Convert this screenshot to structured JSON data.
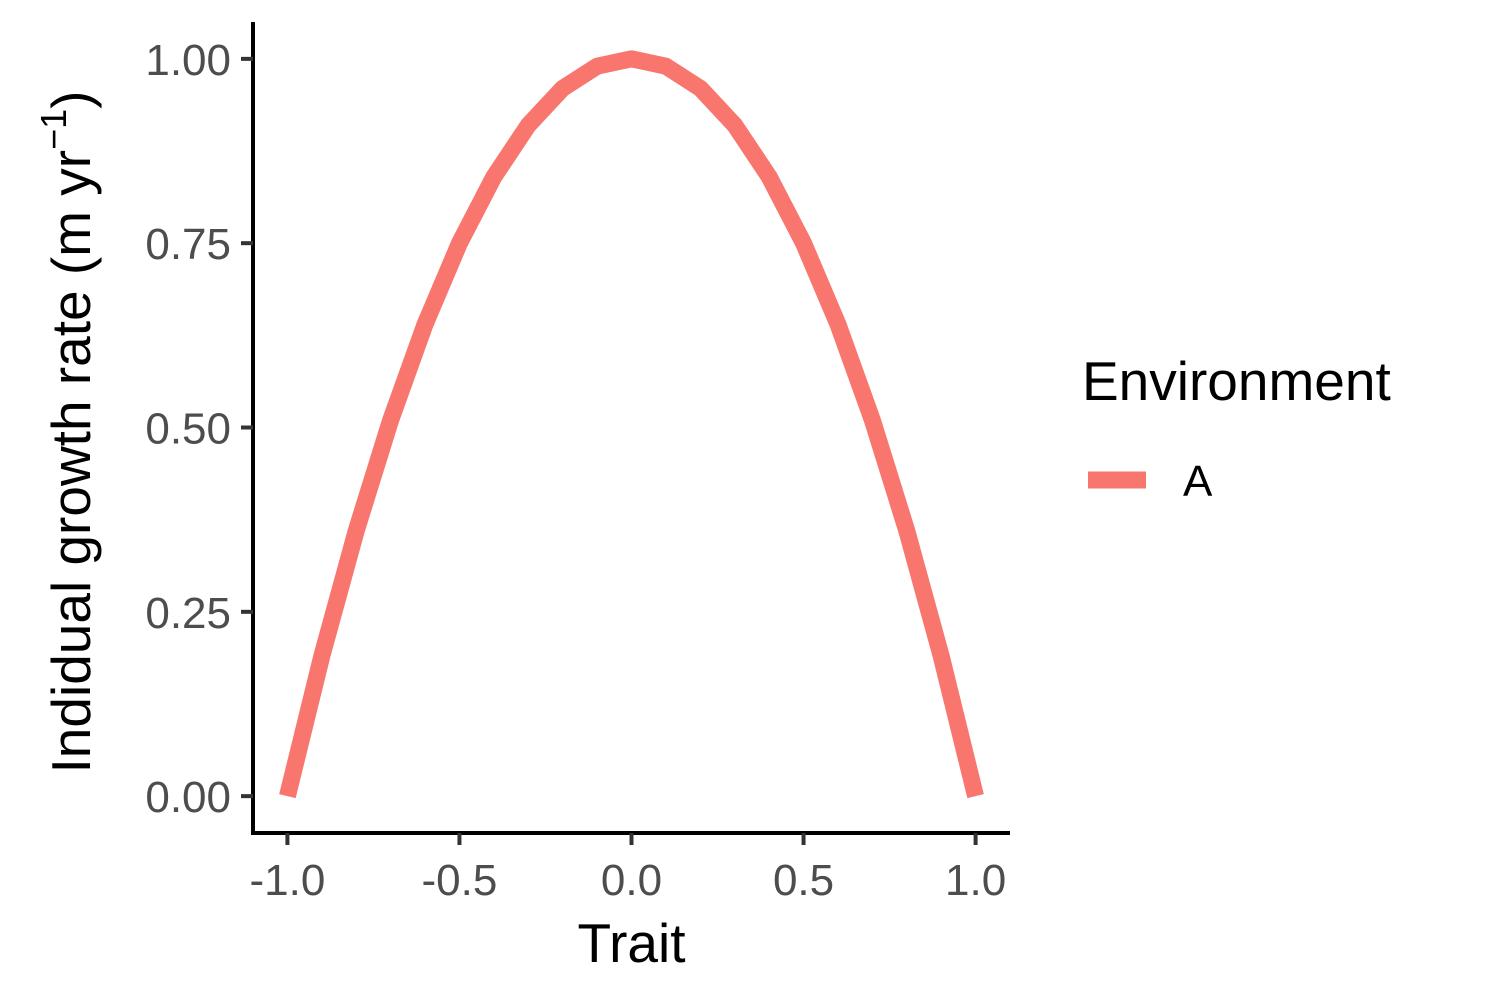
{
  "chart_data": {
    "type": "line",
    "title": "",
    "xlabel": "Trait",
    "ylabel": {
      "main": "Indidual growth rate (m yr",
      "superscript": "−1",
      "close": ")"
    },
    "xlim": [
      -1.1,
      1.1
    ],
    "ylim": [
      -0.05,
      1.05
    ],
    "x_ticks": [
      -1.0,
      -0.5,
      0.0,
      0.5,
      1.0
    ],
    "x_tick_labels": [
      "-1.0",
      "-0.5",
      "0.0",
      "0.5",
      "1.0"
    ],
    "y_ticks": [
      0.0,
      0.25,
      0.5,
      0.75,
      1.0
    ],
    "y_tick_labels": [
      "0.00",
      "0.25",
      "0.50",
      "0.75",
      "1.00"
    ],
    "grid": false,
    "legend": {
      "title": "Environment",
      "placement": "right",
      "entries": [
        {
          "label": "A",
          "color": "#F8766D"
        }
      ]
    },
    "series": [
      {
        "name": "A",
        "color": "#F8766D",
        "x": [
          -1.0,
          -0.9,
          -0.8,
          -0.7,
          -0.6,
          -0.5,
          -0.4,
          -0.3,
          -0.2,
          -0.1,
          0.0,
          0.1,
          0.2,
          0.3,
          0.4,
          0.5,
          0.6,
          0.7,
          0.8,
          0.9,
          1.0
        ],
        "y": [
          0.0,
          0.19,
          0.36,
          0.51,
          0.64,
          0.75,
          0.84,
          0.91,
          0.96,
          0.99,
          1.0,
          0.99,
          0.96,
          0.91,
          0.84,
          0.75,
          0.64,
          0.51,
          0.36,
          0.19,
          0.0
        ]
      }
    ]
  }
}
